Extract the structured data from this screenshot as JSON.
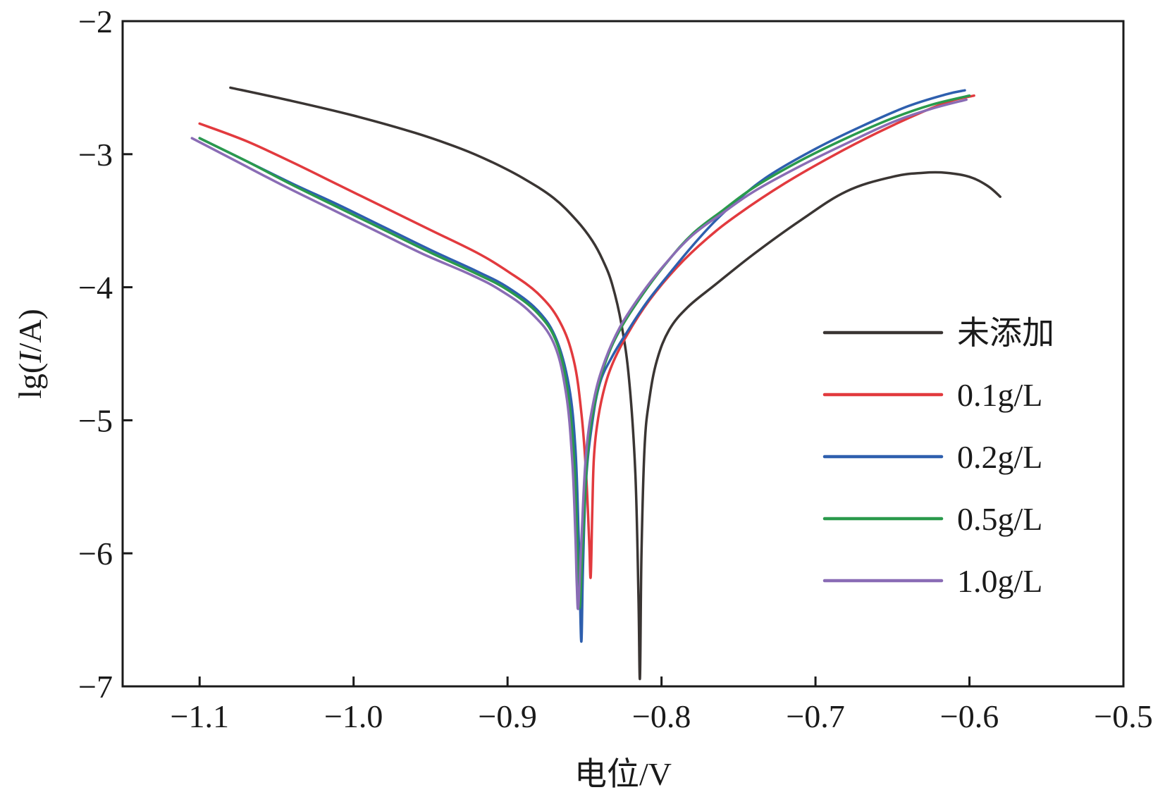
{
  "chart_data": {
    "type": "line",
    "title": "",
    "xlabel": "电位/V",
    "ylabel_prefix": "lg(",
    "ylabel_italic": "I",
    "ylabel_suffix": "/A)",
    "xlim": [
      -1.15,
      -0.5
    ],
    "ylim": [
      -7,
      -2
    ],
    "xticks": [
      -1.1,
      -1.0,
      -0.9,
      -0.8,
      -0.7,
      -0.6,
      -0.5
    ],
    "xtick_labels": [
      "−1.1",
      "−1.0",
      "−0.9",
      "−0.8",
      "−0.7",
      "−0.6",
      "−0.5"
    ],
    "yticks": [
      -2,
      -3,
      -4,
      -5,
      -6,
      -7
    ],
    "ytick_labels": [
      "−2",
      "−3",
      "−4",
      "−5",
      "−6",
      "−7"
    ],
    "grid": false,
    "legend_position": "right",
    "series": [
      {
        "name": "未添加",
        "color": "#3a3533",
        "x": [
          -1.08,
          -1.04,
          -1.0,
          -0.96,
          -0.93,
          -0.91,
          -0.89,
          -0.87,
          -0.855,
          -0.845,
          -0.838,
          -0.832,
          -0.826,
          -0.821,
          -0.817,
          -0.815,
          -0.814,
          -0.813,
          -0.811,
          -0.808,
          -0.803,
          -0.795,
          -0.783,
          -0.765,
          -0.74,
          -0.71,
          -0.68,
          -0.65,
          -0.63,
          -0.615,
          -0.6,
          -0.588,
          -0.58
        ],
        "y": [
          -2.5,
          -2.6,
          -2.71,
          -2.84,
          -2.96,
          -3.06,
          -3.18,
          -3.33,
          -3.5,
          -3.65,
          -3.8,
          -3.98,
          -4.28,
          -4.7,
          -5.4,
          -6.3,
          -6.94,
          -6.0,
          -5.2,
          -4.85,
          -4.55,
          -4.32,
          -4.15,
          -3.98,
          -3.75,
          -3.5,
          -3.28,
          -3.17,
          -3.14,
          -3.14,
          -3.17,
          -3.24,
          -3.32
        ]
      },
      {
        "name": "0.1g/L",
        "color": "#e23a3e",
        "x": [
          -1.1,
          -1.07,
          -1.04,
          -1.01,
          -0.98,
          -0.95,
          -0.92,
          -0.9,
          -0.88,
          -0.866,
          -0.857,
          -0.852,
          -0.849,
          -0.847,
          -0.846,
          -0.845,
          -0.844,
          -0.842,
          -0.838,
          -0.832,
          -0.822,
          -0.808,
          -0.79,
          -0.77,
          -0.75,
          -0.72,
          -0.69,
          -0.66,
          -0.63,
          -0.612,
          -0.597
        ],
        "y": [
          -2.77,
          -2.9,
          -3.06,
          -3.23,
          -3.4,
          -3.57,
          -3.74,
          -3.88,
          -4.05,
          -4.26,
          -4.55,
          -4.95,
          -5.4,
          -5.9,
          -6.18,
          -5.7,
          -5.3,
          -5.05,
          -4.8,
          -4.58,
          -4.35,
          -4.1,
          -3.85,
          -3.63,
          -3.45,
          -3.22,
          -3.02,
          -2.84,
          -2.68,
          -2.6,
          -2.56
        ]
      },
      {
        "name": "0.2g/L",
        "color": "#2e5fae",
        "x": [
          -1.1,
          -1.07,
          -1.04,
          -1.01,
          -0.98,
          -0.95,
          -0.92,
          -0.9,
          -0.88,
          -0.868,
          -0.86,
          -0.856,
          -0.854,
          -0.853,
          -0.852,
          -0.851,
          -0.849,
          -0.845,
          -0.84,
          -0.832,
          -0.822,
          -0.81,
          -0.795,
          -0.78,
          -0.765,
          -0.75,
          -0.73,
          -0.7,
          -0.67,
          -0.64,
          -0.615,
          -0.603
        ],
        "y": [
          -2.88,
          -3.05,
          -3.22,
          -3.38,
          -3.55,
          -3.72,
          -3.88,
          -4.0,
          -4.18,
          -4.4,
          -4.75,
          -5.2,
          -5.8,
          -6.3,
          -6.66,
          -6.1,
          -5.45,
          -5.02,
          -4.72,
          -4.52,
          -4.33,
          -4.12,
          -3.9,
          -3.69,
          -3.5,
          -3.34,
          -3.16,
          -2.96,
          -2.79,
          -2.64,
          -2.55,
          -2.52
        ]
      },
      {
        "name": "0.5g/L",
        "color": "#2a9a4c",
        "x": [
          -1.1,
          -1.07,
          -1.04,
          -1.01,
          -0.98,
          -0.95,
          -0.92,
          -0.9,
          -0.88,
          -0.868,
          -0.861,
          -0.857,
          -0.855,
          -0.854,
          -0.853,
          -0.851,
          -0.848,
          -0.843,
          -0.836,
          -0.826,
          -0.812,
          -0.797,
          -0.78,
          -0.76,
          -0.74,
          -0.71,
          -0.68,
          -0.65,
          -0.625,
          -0.6
        ],
        "y": [
          -2.88,
          -3.05,
          -3.23,
          -3.4,
          -3.57,
          -3.74,
          -3.9,
          -4.02,
          -4.2,
          -4.42,
          -4.78,
          -5.25,
          -5.8,
          -6.2,
          -6.4,
          -5.9,
          -5.25,
          -4.85,
          -4.55,
          -4.3,
          -4.05,
          -3.82,
          -3.6,
          -3.42,
          -3.25,
          -3.05,
          -2.88,
          -2.73,
          -2.63,
          -2.56
        ]
      },
      {
        "name": "1.0g/L",
        "color": "#8a6cb5",
        "x": [
          -1.105,
          -1.075,
          -1.045,
          -1.015,
          -0.985,
          -0.955,
          -0.925,
          -0.905,
          -0.885,
          -0.87,
          -0.862,
          -0.858,
          -0.856,
          -0.855,
          -0.854,
          -0.852,
          -0.849,
          -0.844,
          -0.837,
          -0.827,
          -0.813,
          -0.798,
          -0.78,
          -0.76,
          -0.74,
          -0.71,
          -0.68,
          -0.65,
          -0.625,
          -0.602
        ],
        "y": [
          -2.88,
          -3.06,
          -3.24,
          -3.41,
          -3.58,
          -3.75,
          -3.9,
          -4.02,
          -4.19,
          -4.42,
          -4.8,
          -5.3,
          -5.85,
          -6.25,
          -6.4,
          -5.9,
          -5.25,
          -4.85,
          -4.56,
          -4.3,
          -4.05,
          -3.83,
          -3.61,
          -3.44,
          -3.28,
          -3.09,
          -2.92,
          -2.76,
          -2.66,
          -2.59
        ]
      }
    ]
  }
}
